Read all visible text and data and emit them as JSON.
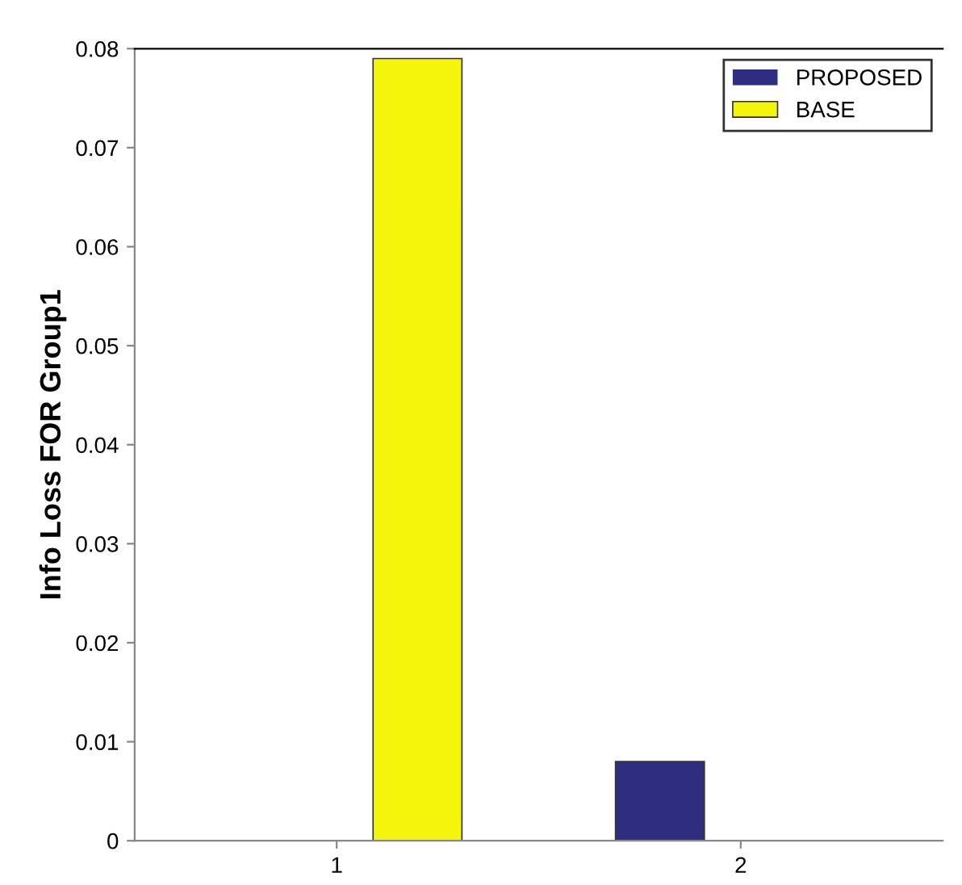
{
  "chart_data": {
    "type": "bar",
    "ylabel": "Info Loss FOR Group1",
    "categories": [
      "1",
      "2"
    ],
    "series": [
      {
        "name": "PROPOSED",
        "color": "#2e2d80",
        "values": [
          0,
          0.008
        ]
      },
      {
        "name": "BASE",
        "color": "#f5f50a",
        "values": [
          0.079,
          0
        ]
      }
    ],
    "ylim": [
      0,
      0.08
    ],
    "yticks": [
      {
        "value": 0,
        "label": "0"
      },
      0.01,
      0.02,
      0.03,
      0.04,
      0.05,
      0.06,
      0.07,
      0.08
    ],
    "legend": "top right",
    "grid": false
  }
}
